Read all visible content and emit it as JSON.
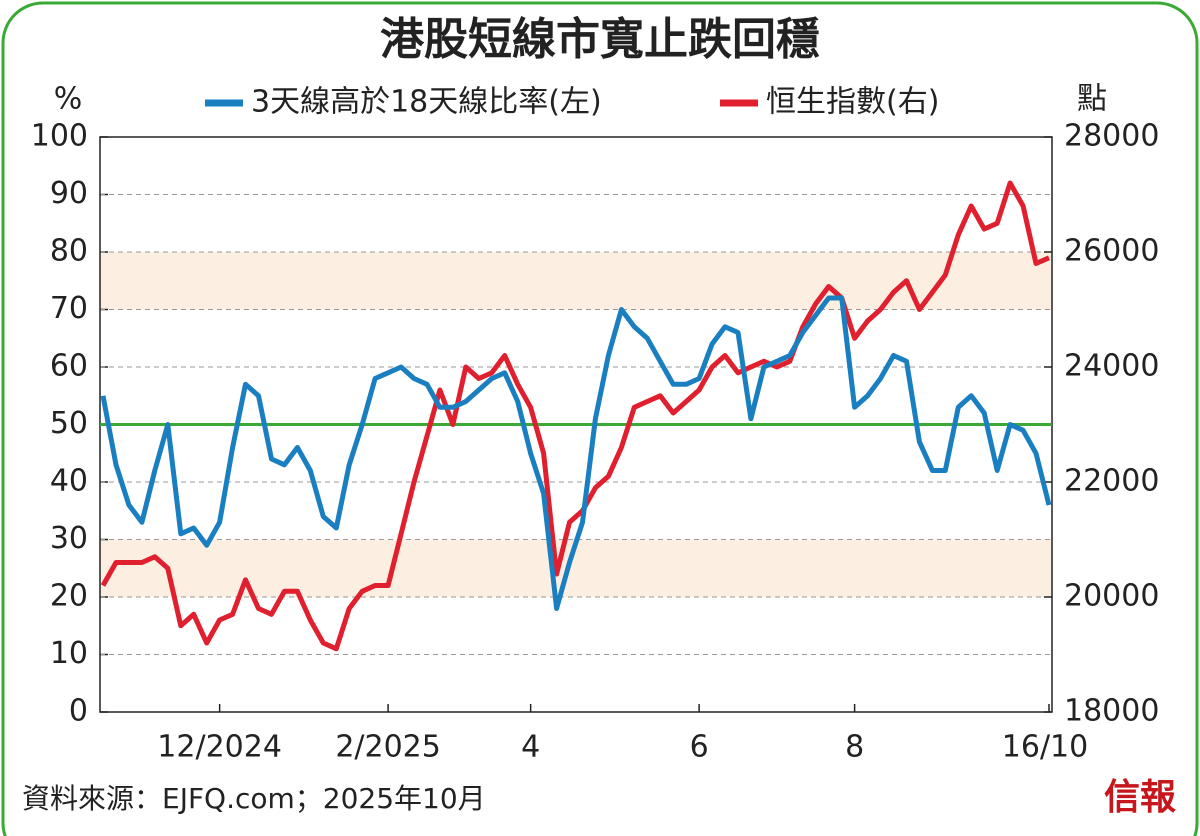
{
  "chart_data": {
    "type": "line",
    "title": "港股短線市寬止跌回穩",
    "y_label": "%",
    "y2_label": "點",
    "source": "資料來源：EJFQ.com；2025年10月",
    "logo": "信報",
    "categories": [
      null,
      null,
      null,
      null,
      null,
      null,
      null,
      null,
      null,
      "12/2024",
      null,
      null,
      null,
      null,
      null,
      null,
      null,
      null,
      null,
      null,
      null,
      null,
      "2/2025",
      null,
      null,
      null,
      null,
      null,
      null,
      null,
      null,
      null,
      null,
      "4",
      null,
      null,
      null,
      null,
      null,
      null,
      null,
      null,
      null,
      null,
      null,
      null,
      "6",
      null,
      null,
      null,
      null,
      null,
      null,
      null,
      null,
      null,
      null,
      null,
      "8",
      null,
      null,
      null,
      null,
      null,
      null,
      null,
      null,
      null,
      null,
      null,
      null,
      null,
      null,
      "16/10"
    ],
    "series": [
      {
        "name": "3天線高於18天線比率(左)",
        "color": "#1a7fc1",
        "axis": "y",
        "values": [
          55,
          43,
          36,
          33,
          42,
          50,
          31,
          32,
          29,
          33,
          46,
          57,
          55,
          44,
          43,
          46,
          42,
          34,
          32,
          43,
          50,
          58,
          59,
          60,
          58,
          57,
          53,
          53,
          54,
          56,
          58,
          59,
          54,
          45,
          38,
          18,
          26,
          33,
          51,
          62,
          70,
          67,
          65,
          61,
          57,
          57,
          58,
          64,
          67,
          66,
          51,
          60,
          61,
          62,
          66,
          69,
          72,
          72,
          53,
          55,
          58,
          62,
          61,
          47,
          42,
          42,
          53,
          55,
          52,
          42,
          50,
          49,
          45,
          36
        ]
      },
      {
        "name": "恒生指數(右)",
        "color": "#e0202e",
        "axis": "y2",
        "values": [
          20200,
          20600,
          20600,
          20600,
          20700,
          20500,
          19500,
          19700,
          19200,
          19600,
          19700,
          20300,
          19800,
          19700,
          20100,
          20100,
          19600,
          19200,
          19100,
          19800,
          20100,
          20200,
          20200,
          21100,
          22000,
          22800,
          23600,
          23000,
          24000,
          23800,
          23900,
          24200,
          23700,
          23300,
          22500,
          20400,
          21300,
          21500,
          21900,
          22100,
          22600,
          23300,
          23400,
          23500,
          23200,
          23400,
          23600,
          24000,
          24200,
          23900,
          24000,
          24100,
          24000,
          24100,
          24700,
          25100,
          25400,
          25200,
          24500,
          24800,
          25000,
          25300,
          25500,
          25000,
          25300,
          25600,
          26300,
          26800,
          26400,
          26500,
          27200,
          26800,
          25800,
          25900
        ]
      }
    ],
    "ylim": [
      0,
      100
    ],
    "yticks": [
      0,
      10,
      20,
      30,
      40,
      50,
      60,
      70,
      80,
      90,
      100
    ],
    "y2lim": [
      18000,
      28000
    ],
    "y2ticks": [
      18000,
      20000,
      22000,
      24000,
      26000,
      28000
    ],
    "shaded_ranges": [
      [
        20,
        30
      ],
      [
        70,
        80
      ]
    ],
    "shade_color": "#fdeee2",
    "reference_line": 50,
    "reference_color": "#3aaa35",
    "grid": true
  }
}
